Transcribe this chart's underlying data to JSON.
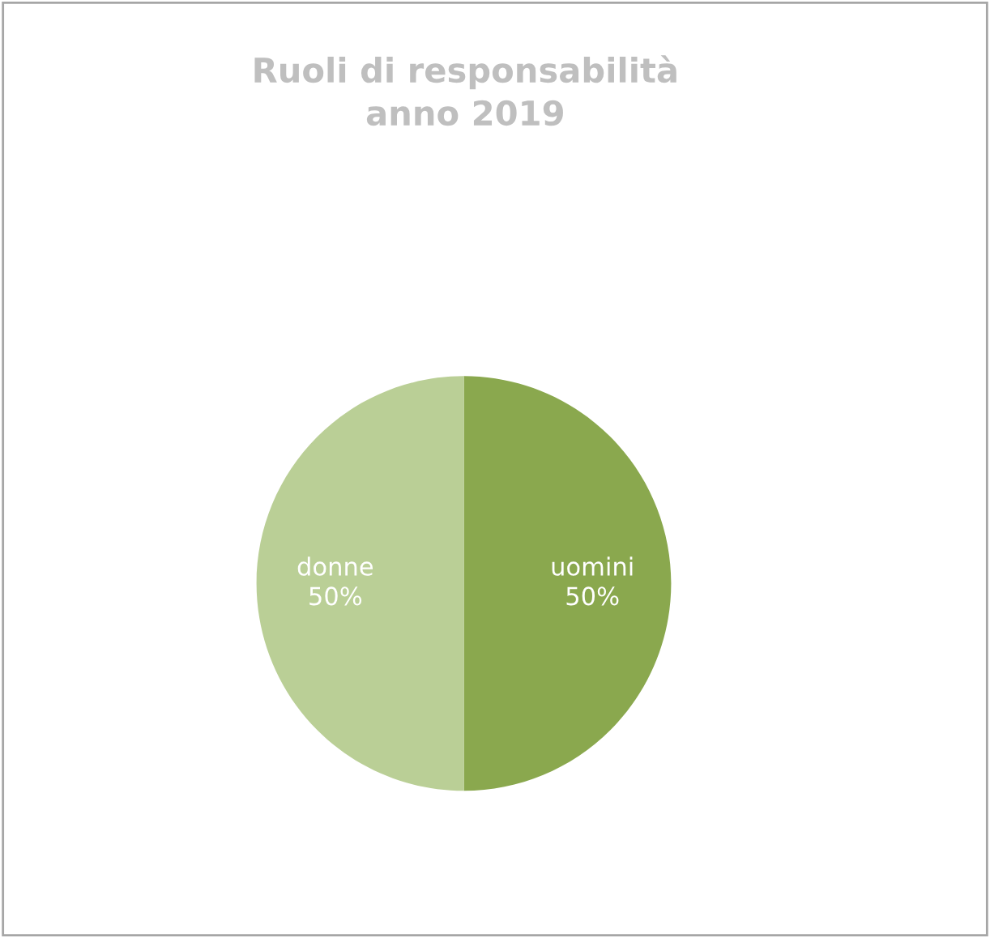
{
  "chart_data": {
    "type": "pie",
    "title": "Ruoli di responsabilità\nanno 2019",
    "categories": [
      "uomini",
      "donne"
    ],
    "values": [
      50,
      50
    ],
    "colors": [
      "#8aa84e",
      "#bacf96"
    ],
    "value_labels": [
      "50%",
      "50%"
    ],
    "legend": false
  }
}
